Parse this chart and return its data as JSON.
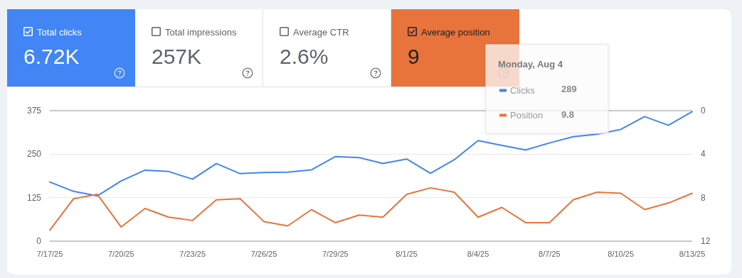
{
  "chart_data": [
    {
      "type": "other",
      "annotations": [
        "Total clicks",
        "6.72K",
        "Total impressions",
        "257K",
        "Average CTR",
        "2.6%",
        "Average position",
        "9"
      ],
      "colors": [
        "#4285f4",
        null,
        null,
        "#e8743b"
      ]
    },
    {
      "type": "line",
      "categories": [
        "7/17/25",
        null,
        null,
        "7/20/25",
        null,
        null,
        "7/23/25",
        null,
        null,
        "7/26/25",
        null,
        null,
        "7/29/25",
        null,
        null,
        "8/1/25",
        null,
        null,
        "8/4/25",
        null,
        null,
        "8/7/25",
        null,
        null,
        "8/10/25",
        null,
        null,
        "8/13/25"
      ],
      "series": [
        {
          "name": "Clicks",
          "color": "#4285f4",
          "values": [
            170,
            143,
            130,
            173,
            204,
            200,
            178,
            223,
            194,
            197,
            198,
            205,
            243,
            240,
            223,
            236,
            195,
            234,
            289,
            275,
            262,
            282,
            300,
            307,
            321,
            358,
            333,
            372
          ]
        },
        {
          "name": "Position",
          "color": "#e8743b",
          "axis": "y2",
          "values": [
            11.0,
            8.1,
            7.7,
            10.7,
            9.0,
            9.8,
            10.1,
            8.2,
            8.1,
            10.2,
            10.6,
            9.1,
            10.3,
            9.6,
            9.8,
            7.7,
            7.1,
            7.5,
            9.8,
            8.9,
            10.3,
            10.3,
            8.2,
            7.5,
            7.6,
            9.1,
            8.5,
            7.6
          ]
        }
      ],
      "ylim": [
        0,
        375
      ],
      "yticks": [
        0,
        125,
        250,
        375
      ],
      "y2lim": [
        12,
        0
      ],
      "y2ticks": [
        12,
        8,
        4,
        0
      ],
      "grid": "y",
      "legend": "top right",
      "marker": "none",
      "line_style": "solid",
      "annotations": [
        "Monday, Aug 4",
        "289",
        "9.8"
      ]
    }
  ]
}
